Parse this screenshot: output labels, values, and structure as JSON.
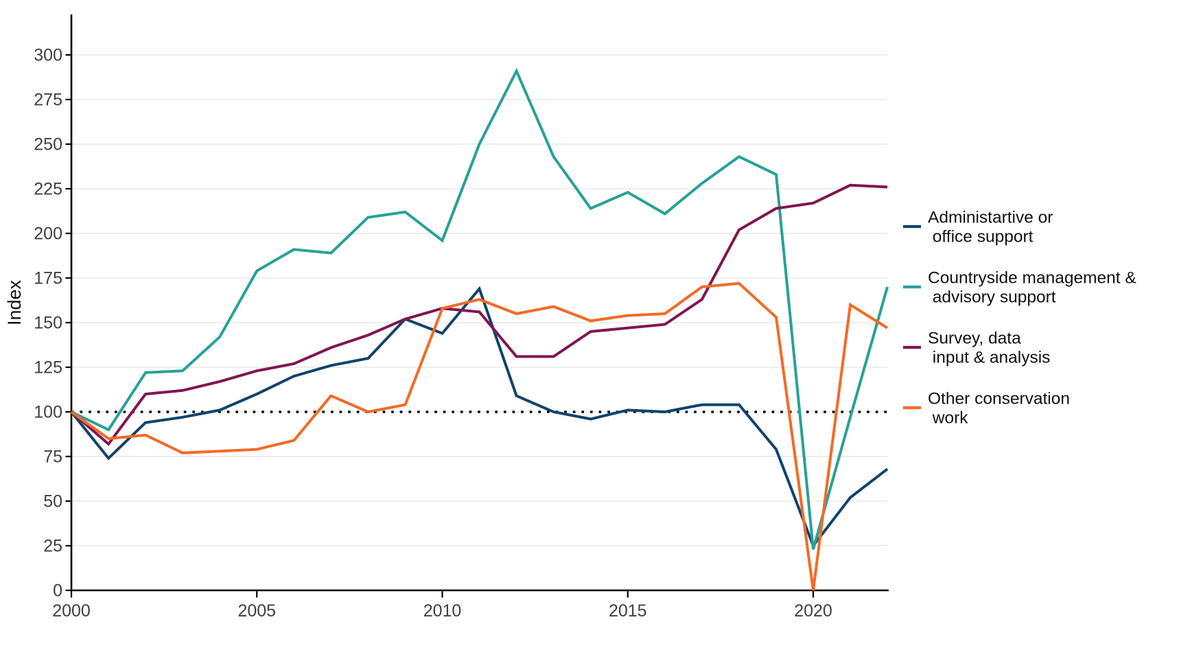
{
  "chart_data": {
    "type": "line",
    "title": "",
    "ylabel": "Index",
    "x": [
      2000,
      2001,
      2002,
      2003,
      2004,
      2005,
      2006,
      2007,
      2008,
      2009,
      2010,
      2011,
      2012,
      2013,
      2014,
      2015,
      2016,
      2017,
      2018,
      2019,
      2020,
      2021,
      2022
    ],
    "x_ticks": [
      2000,
      2005,
      2010,
      2015,
      2020
    ],
    "y_ticks": [
      0,
      25,
      50,
      75,
      100,
      125,
      150,
      175,
      200,
      225,
      250,
      275,
      300
    ],
    "xlim": [
      2000,
      2022
    ],
    "ylim": [
      0,
      322
    ],
    "grid": "horizontal-only",
    "legend_position": "right",
    "reference_line": {
      "value": 100,
      "style": "dotted",
      "color": "#000000"
    },
    "colors": {
      "axis": "#000000",
      "gridline": "#e8e8e8",
      "tick_label": "#404040",
      "text": "#111111",
      "background": "#ffffff"
    },
    "series": [
      {
        "name": "Administartive or office support",
        "label_lines": [
          "Administartive or",
          " office support"
        ],
        "color": "#12436D",
        "values": [
          100,
          74,
          94,
          97,
          101,
          110,
          120,
          126,
          130,
          152,
          144,
          169,
          109,
          100,
          96,
          101,
          100,
          104,
          104,
          79,
          25,
          52,
          68
        ]
      },
      {
        "name": "Countryside management & advisory support",
        "label_lines": [
          "Countryside management &",
          " advisory support"
        ],
        "color": "#28A197",
        "values": [
          100,
          90,
          122,
          123,
          142,
          179,
          191,
          189,
          209,
          212,
          196,
          250,
          291,
          243,
          214,
          223,
          211,
          228,
          243,
          233,
          23,
          97,
          170
        ]
      },
      {
        "name": "Survey, data input & analysis",
        "label_lines": [
          "Survey, data",
          " input & analysis"
        ],
        "color": "#801650",
        "values": [
          100,
          82,
          110,
          112,
          117,
          123,
          127,
          136,
          143,
          152,
          158,
          156,
          131,
          131,
          145,
          147,
          149,
          163,
          202,
          214,
          217,
          227,
          226
        ]
      },
      {
        "name": "Other conservation work",
        "label_lines": [
          "Other conservation",
          " work"
        ],
        "color": "#F46A25",
        "values": [
          100,
          85,
          87,
          77,
          78,
          79,
          84,
          109,
          100,
          104,
          158,
          163,
          155,
          159,
          151,
          154,
          155,
          170,
          172,
          153,
          0,
          160,
          147
        ]
      }
    ]
  }
}
